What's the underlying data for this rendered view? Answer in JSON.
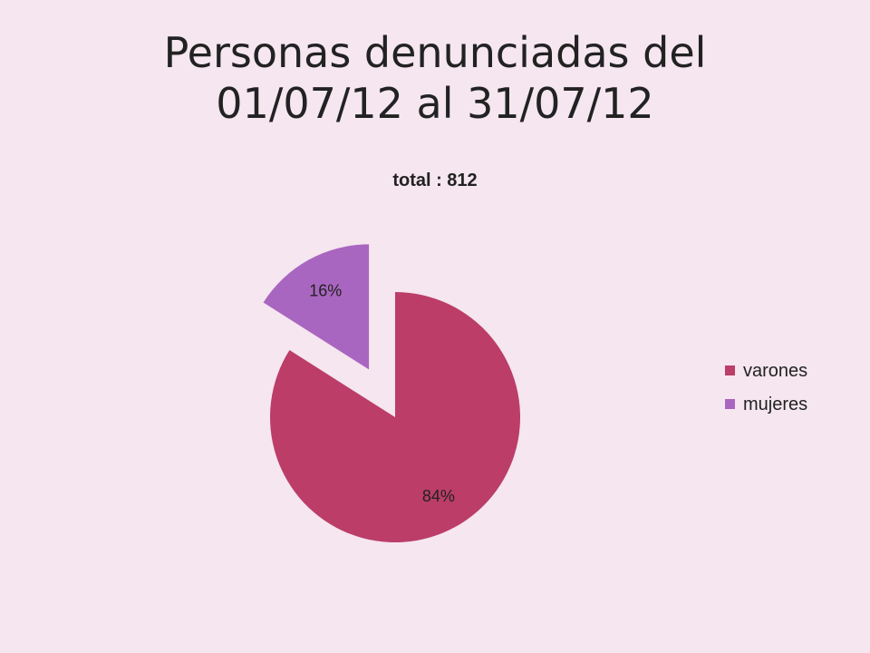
{
  "slide": {
    "title_lines": [
      "Personas denunciadas del",
      "01/07/12 al 31/07/12"
    ]
  },
  "chart_data": {
    "type": "pie",
    "title": "total : 812",
    "categories": [
      "varones",
      "mujeres"
    ],
    "values": [
      84,
      16
    ],
    "data_labels": [
      "84%",
      "16%"
    ],
    "colors": [
      "#bb3d68",
      "#a966c0"
    ],
    "exploded": [
      "mujeres"
    ],
    "legend": "right"
  }
}
